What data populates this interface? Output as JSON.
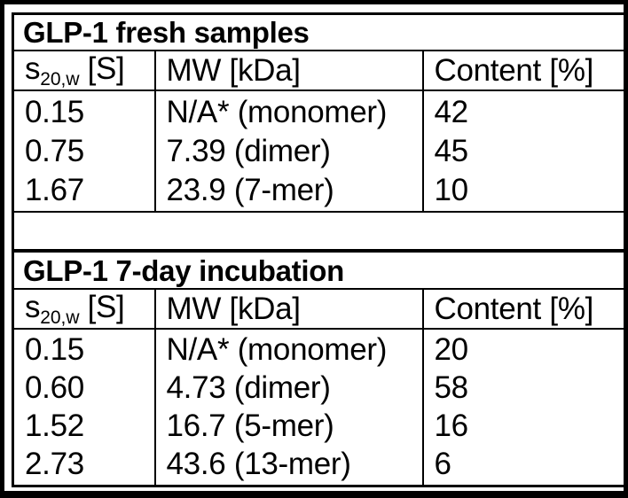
{
  "colors": {
    "background": "#ffffff",
    "border": "#000000",
    "text": "#000000"
  },
  "tables": [
    {
      "title": "GLP-1 fresh samples",
      "columns": {
        "s": {
          "base": "s",
          "sub": "20,w",
          "unit": "[S]"
        },
        "mw": "MW [kDa]",
        "content": "Content [%]"
      },
      "rows": [
        {
          "s": "0.15",
          "mw": "N/A* (monomer)",
          "content": "42"
        },
        {
          "s": "0.75",
          "mw": "7.39 (dimer)",
          "content": "45"
        },
        {
          "s": "1.67",
          "mw": "23.9 (7-mer)",
          "content": "10"
        }
      ]
    },
    {
      "title": "GLP-1 7-day incubation",
      "columns": {
        "s": {
          "base": "s",
          "sub": "20,w",
          "unit": "[S]"
        },
        "mw": "MW [kDa]",
        "content": "Content [%]"
      },
      "rows": [
        {
          "s": "0.15",
          "mw": "N/A* (monomer)",
          "content": "20"
        },
        {
          "s": "0.60",
          "mw": "4.73 (dimer)",
          "content": "58"
        },
        {
          "s": "1.52",
          "mw": "16.7 (5-mer)",
          "content": "16"
        },
        {
          "s": "2.73",
          "mw": "43.6 (13-mer)",
          "content": "6"
        }
      ]
    }
  ]
}
